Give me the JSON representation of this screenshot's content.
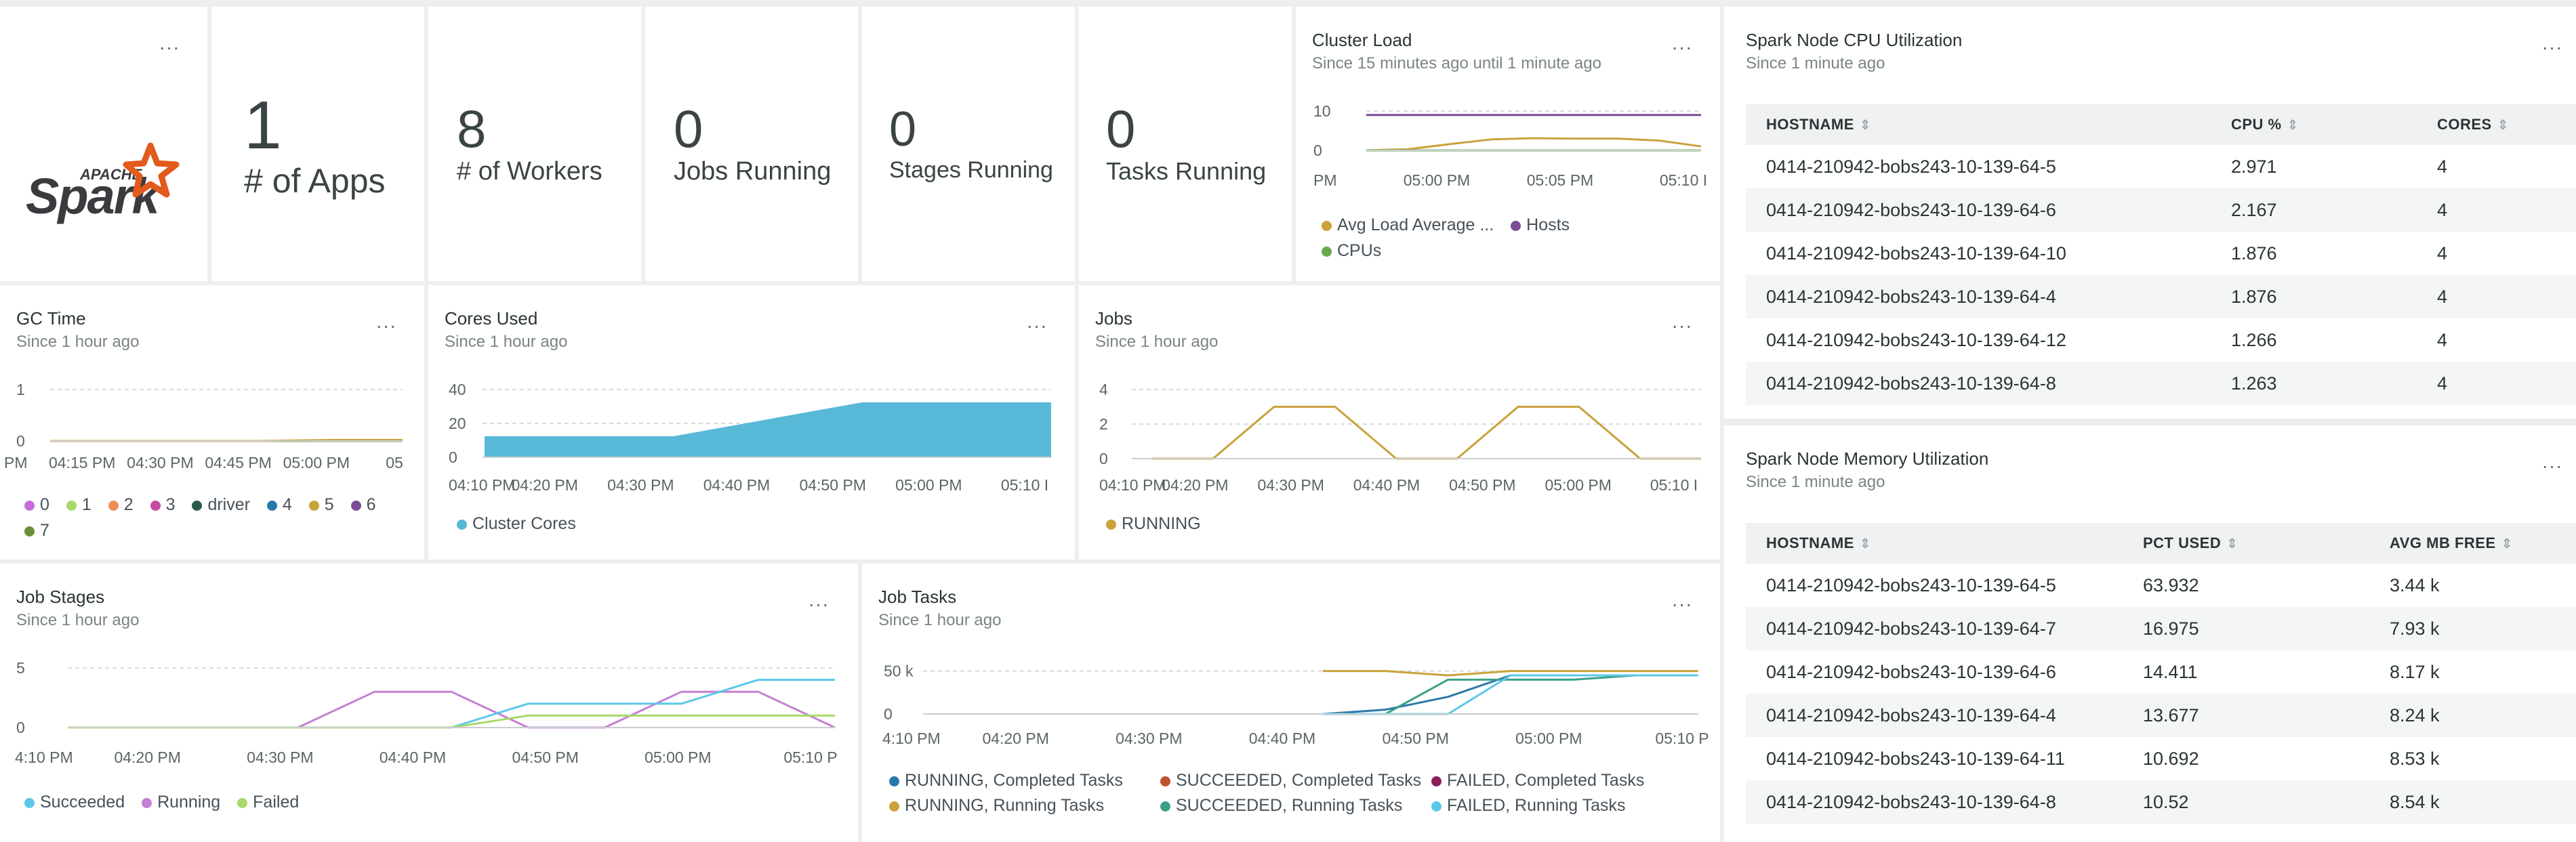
{
  "more_label": "···",
  "stats": [
    {
      "value": "1",
      "label": "# of Apps"
    },
    {
      "value": "8",
      "label": "# of Workers"
    },
    {
      "value": "0",
      "label": "Jobs Running"
    },
    {
      "value": "0",
      "label": "Stages Running"
    },
    {
      "value": "0",
      "label": "Tasks Running"
    }
  ],
  "logo": {
    "apache": "APACHE",
    "spark": "Spark"
  },
  "cluster_load": {
    "title": "Cluster Load",
    "subtitle": "Since 15 minutes ago until 1 minute ago",
    "legend": [
      {
        "name": "Avg Load Average ...",
        "color": "#c9a23b"
      },
      {
        "name": "Hosts",
        "color": "#7b4b93"
      },
      {
        "name": "CPUs",
        "color": "#6aa84f"
      }
    ]
  },
  "gc_time": {
    "title": "GC Time",
    "subtitle": "Since 1 hour ago",
    "legend": [
      {
        "name": "0",
        "color": "#c86dd7"
      },
      {
        "name": "1",
        "color": "#a8d96b"
      },
      {
        "name": "2",
        "color": "#ef8d57"
      },
      {
        "name": "3",
        "color": "#c94aa5"
      },
      {
        "name": "driver",
        "color": "#2a5a4a"
      },
      {
        "name": "4",
        "color": "#2a78a8"
      },
      {
        "name": "5",
        "color": "#c9a23b"
      },
      {
        "name": "6",
        "color": "#7b4b93"
      },
      {
        "name": "7",
        "color": "#6b8f3a"
      }
    ]
  },
  "cores_used": {
    "title": "Cores Used",
    "subtitle": "Since 1 hour ago",
    "legend": [
      {
        "name": "Cluster Cores",
        "color": "#58b8d8"
      }
    ]
  },
  "jobs": {
    "title": "Jobs",
    "subtitle": "Since 1 hour ago",
    "legend": [
      {
        "name": "RUNNING",
        "color": "#c9a23b"
      }
    ]
  },
  "job_stages": {
    "title": "Job Stages",
    "subtitle": "Since 1 hour ago",
    "legend": [
      {
        "name": "Succeeded",
        "color": "#5bc8e8"
      },
      {
        "name": "Running",
        "color": "#c47fd2"
      },
      {
        "name": "Failed",
        "color": "#a8d96b"
      }
    ]
  },
  "job_tasks": {
    "title": "Job Tasks",
    "subtitle": "Since 1 hour ago",
    "legend": [
      {
        "name": "RUNNING, Completed Tasks",
        "color": "#2a78a8"
      },
      {
        "name": "SUCCEEDED, Completed Tasks",
        "color": "#c0532e"
      },
      {
        "name": "FAILED, Completed Tasks",
        "color": "#8a1f5a"
      },
      {
        "name": "RUNNING, Running Tasks",
        "color": "#c9a23b"
      },
      {
        "name": "SUCCEEDED, Running Tasks",
        "color": "#3aa08a"
      },
      {
        "name": "FAILED, Running Tasks",
        "color": "#5bc8e8"
      }
    ]
  },
  "cpu_table": {
    "title": "Spark Node CPU Utilization",
    "subtitle": "Since 1 minute ago",
    "columns": [
      "HOSTNAME",
      "CPU %",
      "CORES"
    ],
    "rows": [
      [
        "0414-210942-bobs243-10-139-64-5",
        "2.971",
        "4"
      ],
      [
        "0414-210942-bobs243-10-139-64-6",
        "2.167",
        "4"
      ],
      [
        "0414-210942-bobs243-10-139-64-10",
        "1.876",
        "4"
      ],
      [
        "0414-210942-bobs243-10-139-64-4",
        "1.876",
        "4"
      ],
      [
        "0414-210942-bobs243-10-139-64-12",
        "1.266",
        "4"
      ],
      [
        "0414-210942-bobs243-10-139-64-8",
        "1.263",
        "4"
      ]
    ]
  },
  "mem_table": {
    "title": "Spark Node Memory Utilization",
    "subtitle": "Since 1 minute ago",
    "columns": [
      "HOSTNAME",
      "PCT USED",
      "AVG MB FREE"
    ],
    "rows": [
      [
        "0414-210942-bobs243-10-139-64-5",
        "63.932",
        "3.44 k"
      ],
      [
        "0414-210942-bobs243-10-139-64-7",
        "16.975",
        "7.93 k"
      ],
      [
        "0414-210942-bobs243-10-139-64-6",
        "14.411",
        "8.17 k"
      ],
      [
        "0414-210942-bobs243-10-139-64-4",
        "13.677",
        "8.24 k"
      ],
      [
        "0414-210942-bobs243-10-139-64-11",
        "10.692",
        "8.53 k"
      ],
      [
        "0414-210942-bobs243-10-139-64-8",
        "10.52",
        "8.54 k"
      ]
    ]
  },
  "chart_data": [
    {
      "id": "cluster_load",
      "type": "line",
      "x": [
        "04:54 PM",
        "04:56 PM",
        "04:58 PM",
        "05:00 PM",
        "05:02 PM",
        "05:04 PM",
        "05:06 PM",
        "05:08 PM",
        "05:10 PM"
      ],
      "x_ticks": [
        "PM",
        "05:00 PM",
        "05:05 PM",
        "05:10 I"
      ],
      "y_ticks": [
        "10",
        "0"
      ],
      "ylim": [
        0,
        10
      ],
      "series": [
        {
          "name": "Hosts",
          "values": [
            9,
            9,
            9,
            9,
            9,
            9,
            9,
            9,
            9
          ]
        },
        {
          "name": "Avg Load Average ...",
          "values": [
            0,
            0.3,
            1.6,
            2.8,
            3.1,
            3.0,
            3.0,
            2.5,
            1.0
          ]
        },
        {
          "name": "CPUs",
          "values": [
            0,
            0,
            0,
            0,
            0,
            0,
            0,
            0,
            0
          ]
        }
      ]
    },
    {
      "id": "gc_time",
      "type": "line",
      "x_ticks": [
        "PM",
        "04:15 PM",
        "04:30 PM",
        "04:45 PM",
        "05:00 PM",
        "05"
      ],
      "y_ticks": [
        "1",
        "0"
      ],
      "ylim": [
        0,
        1
      ],
      "series": [
        {
          "name": "7",
          "values": [
            0,
            0,
            0,
            0,
            0,
            0
          ]
        },
        {
          "name": "5",
          "values": [
            0,
            0,
            0,
            0,
            0.02,
            0.02
          ]
        }
      ]
    },
    {
      "id": "cores_used",
      "type": "area",
      "x": [
        "04:12 PM",
        "04:47 PM",
        "04:48 PM",
        "05:12 PM"
      ],
      "x_ticks": [
        "04:10 PM",
        "04:20 PM",
        "04:30 PM",
        "04:40 PM",
        "04:50 PM",
        "05:00 PM",
        "05:10 I"
      ],
      "y_ticks": [
        "40",
        "20",
        "0"
      ],
      "ylim": [
        0,
        40
      ],
      "series": [
        {
          "name": "Cluster Cores",
          "values": [
            12,
            12,
            32,
            32
          ]
        }
      ]
    },
    {
      "id": "jobs",
      "type": "line",
      "x": [
        "04:13 PM",
        "04:41 PM",
        "04:42 PM",
        "04:49 PM",
        "04:52 PM",
        "04:58 PM",
        "05:00 PM",
        "05:06 PM",
        "05:08 PM",
        "05:12 PM"
      ],
      "x_ticks": [
        "04:10 PM",
        "04:20 PM",
        "04:30 PM",
        "04:40 PM",
        "04:50 PM",
        "05:00 PM",
        "05:10 I"
      ],
      "y_ticks": [
        "4",
        "2",
        "0"
      ],
      "ylim": [
        0,
        4
      ],
      "series": [
        {
          "name": "RUNNING",
          "values": [
            0,
            0,
            3,
            3,
            0,
            0,
            3,
            3,
            0,
            0
          ]
        }
      ]
    },
    {
      "id": "job_stages",
      "type": "line",
      "x_ticks": [
        "4:10 PM",
        "04:20 PM",
        "04:30 PM",
        "04:40 PM",
        "04:50 PM",
        "05:00 PM",
        "05:10 P"
      ],
      "y_ticks": [
        "5",
        "0"
      ],
      "ylim": [
        0,
        5
      ],
      "series": [
        {
          "name": "Running",
          "values": [
            0,
            0,
            0,
            0,
            3,
            3,
            0,
            0,
            3,
            3,
            0
          ]
        },
        {
          "name": "Succeeded",
          "values": [
            0,
            0,
            0,
            0,
            0,
            0,
            2,
            2,
            2,
            4,
            4
          ]
        },
        {
          "name": "Failed",
          "values": [
            0,
            0,
            0,
            0,
            0,
            0,
            1,
            1,
            1,
            1,
            1
          ]
        }
      ]
    },
    {
      "id": "job_tasks",
      "type": "line",
      "x_ticks": [
        "4:10 PM",
        "04:20 PM",
        "04:30 PM",
        "04:40 PM",
        "04:50 PM",
        "05:00 PM",
        "05:10 P"
      ],
      "y_ticks": [
        "50 k",
        "0"
      ],
      "ylim": [
        0,
        60000
      ],
      "series": [
        {
          "name": "RUNNING, Running Tasks",
          "values": [
            50000,
            50000,
            45000,
            50000,
            50000,
            50000,
            50000
          ]
        },
        {
          "name": "RUNNING, Completed Tasks",
          "values": [
            0,
            5000,
            20000,
            45000,
            45000,
            45000,
            45000
          ]
        },
        {
          "name": "SUCCEEDED, Running Tasks",
          "values": [
            0,
            0,
            40000,
            40000,
            40000,
            45000,
            45000
          ]
        },
        {
          "name": "FAILED, Running Tasks",
          "values": [
            0,
            0,
            0,
            45000,
            45000,
            45000,
            45000
          ]
        }
      ]
    }
  ]
}
